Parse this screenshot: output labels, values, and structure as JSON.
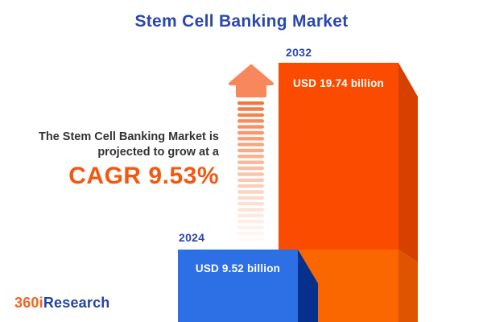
{
  "title": "Stem Cell Banking Market",
  "tagline": {
    "line1": "The Stem Cell Banking Market is",
    "line2": "projected to grow at a",
    "cagr": "CAGR 9.53%"
  },
  "chart_data": {
    "type": "bar",
    "title": "Stem Cell Banking Market",
    "categories": [
      "2024",
      "2032"
    ],
    "values": [
      9.52,
      19.74
    ],
    "unit": "USD billion",
    "value_labels": [
      "USD 9.52 billion",
      "USD 19.74 billion"
    ],
    "cagr_percent": 9.53,
    "xlabel": "",
    "ylabel": "",
    "grid": false,
    "legend_position": "none",
    "style": "3d-bars-with-growth-arrow"
  },
  "bars": {
    "y2024": {
      "year": "2024",
      "value_label": "USD 9.52 billion"
    },
    "y2032": {
      "year": "2032",
      "value_label": "USD 19.74 billion"
    }
  },
  "logo": {
    "part1": "360i",
    "part2": "Research"
  },
  "colors": {
    "title_blue": "#2A47AE",
    "text_dark": "#333333",
    "cagr_orange": "#F4570F",
    "bar2032_front": "#FB4B00",
    "bar2032_side": "#D64100",
    "bar2032_base_front": "#FA6600",
    "bar2032_base_side": "#DE5400",
    "bar2024_front": "#2D6FE4",
    "bar2024_side": "#05318C",
    "arrow_head": "#F8875C",
    "arrow_dash": "#F5743C",
    "logo_orange": "#F26522",
    "logo_blue": "#2244AA"
  }
}
